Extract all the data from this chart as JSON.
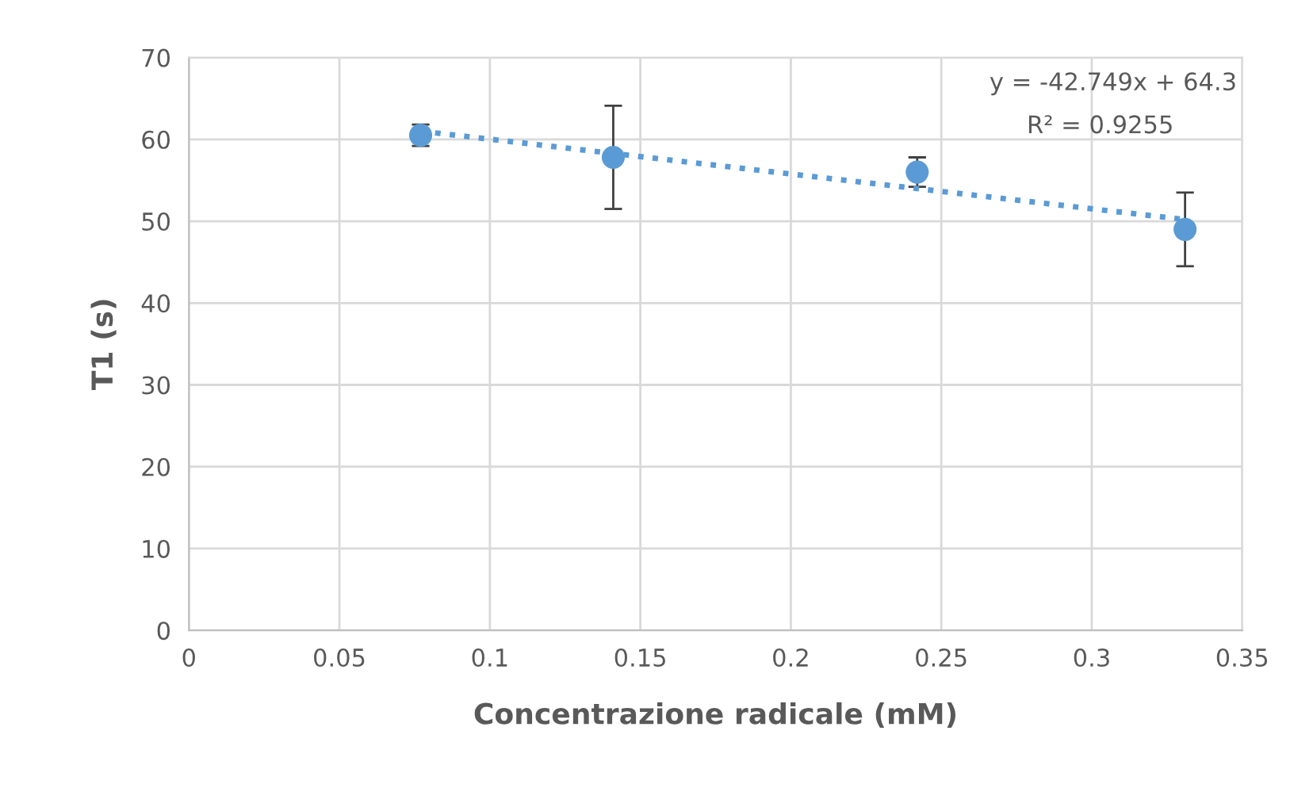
{
  "chart_data": {
    "type": "scatter",
    "xlabel": "Concentrazione radicale (mM)",
    "ylabel": "T1 (s)",
    "x": [
      0.077,
      0.141,
      0.242,
      0.331
    ],
    "series": [
      {
        "color": "#5b9bd5",
        "values": [
          60.5,
          57.8,
          56.0,
          49.0
        ],
        "errors": [
          1.3,
          6.3,
          1.8,
          4.5
        ],
        "marker": "circle"
      },
      {
        "type": "line",
        "color": "#5b9bd5",
        "x": [
          0.077,
          0.331
        ],
        "values": [
          61.0,
          50.2
        ],
        "line_style": "dotted",
        "marker": "none"
      }
    ],
    "xlim": [
      0,
      0.35
    ],
    "xticks": [
      0,
      0.05,
      0.1,
      0.15,
      0.2,
      0.25,
      0.3,
      0.35
    ],
    "ylim": [
      0,
      70
    ],
    "yticks": [
      0,
      10,
      20,
      30,
      40,
      50,
      60,
      70
    ],
    "grid": true,
    "annotations": [
      "y = -42.749x + 64.3",
      "R² = 0.9255"
    ]
  }
}
